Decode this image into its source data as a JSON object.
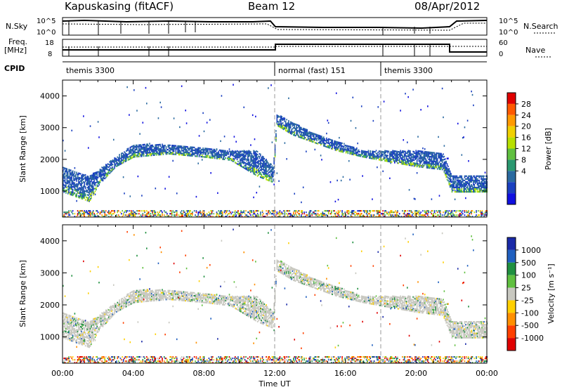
{
  "header": {
    "station": "Kapuskasing (fitACF)",
    "beam": "Beam 12",
    "date": "08/Apr/2012"
  },
  "strip_labels": {
    "nsky": "N.Sky",
    "nsky_hi": "10^5",
    "nsky_lo": "10^0",
    "nsearch": "N.Search",
    "nsearch_hi": "10^5",
    "nsearch_lo": "10^0",
    "freq_line1": "Freq.",
    "freq_line2": "[MHz]",
    "freq_hi": "18",
    "freq_lo": "8",
    "nave": "Nave",
    "nave_hi": "60",
    "nave_lo": "0",
    "cpid": "CPID"
  },
  "cpid_segments": [
    {
      "label": "themis 3300",
      "start_hour": 0
    },
    {
      "label": "normal (fast) 151",
      "start_hour": 12
    },
    {
      "label": "themis 3300",
      "start_hour": 18
    }
  ],
  "power_colorbar": {
    "title": "Power [dB]",
    "ticks": [
      "28",
      "24",
      "20",
      "16",
      "12",
      "8",
      "4"
    ],
    "colors": [
      "#e00000",
      "#ff5a00",
      "#ff9a00",
      "#f0d000",
      "#b8e000",
      "#60c040",
      "#2a9870",
      "#2a6aa0",
      "#1a40c0",
      "#1010e0"
    ]
  },
  "velocity_colorbar": {
    "title": "Velocity [m s⁻¹]",
    "ticks": [
      "1000",
      "500",
      "100",
      "25",
      "-25",
      "-100",
      "-500",
      "-1000"
    ],
    "colors": [
      "#1a2aa8",
      "#2060c0",
      "#209040",
      "#60c040",
      "#c8c8c0",
      "#ffd000",
      "#ff9000",
      "#ff4000",
      "#e00000"
    ]
  },
  "chart_data": {
    "type": "heatmap",
    "title": "Kapuskasing (fitACF) Beam 12",
    "xlabel": "Time UT",
    "ylabel": "Slant Range [km]",
    "xlim": [
      0,
      24
    ],
    "ylim": [
      180,
      4500
    ],
    "x_ticks": [
      "00:00",
      "04:00",
      "08:00",
      "12:00",
      "16:00",
      "20:00",
      "00:00"
    ],
    "y_ticks": [
      "1000",
      "2000",
      "3000",
      "4000"
    ],
    "main_echo_band_km": [
      {
        "hour": 0.0,
        "low": 1000,
        "high": 1800
      },
      {
        "hour": 1.5,
        "low": 700,
        "high": 1500
      },
      {
        "hour": 2.0,
        "low": 1200,
        "high": 1700
      },
      {
        "hour": 3.0,
        "low": 1800,
        "high": 2100
      },
      {
        "hour": 4.0,
        "low": 2100,
        "high": 2500
      },
      {
        "hour": 6.0,
        "low": 2200,
        "high": 2500
      },
      {
        "hour": 8.0,
        "low": 2100,
        "high": 2400
      },
      {
        "hour": 9.5,
        "low": 2000,
        "high": 2300
      },
      {
        "hour": 11.0,
        "low": 1500,
        "high": 2300
      },
      {
        "hour": 11.9,
        "low": 1300,
        "high": 1800
      },
      {
        "hour": 12.1,
        "low": 3100,
        "high": 3450
      },
      {
        "hour": 13.0,
        "low": 2800,
        "high": 3200
      },
      {
        "hour": 14.0,
        "low": 2600,
        "high": 2900
      },
      {
        "hour": 15.5,
        "low": 2300,
        "high": 2600
      },
      {
        "hour": 17.0,
        "low": 2100,
        "high": 2300
      },
      {
        "hour": 18.0,
        "low": 2000,
        "high": 2300
      },
      {
        "hour": 20.0,
        "low": 1800,
        "high": 2300
      },
      {
        "hour": 21.5,
        "low": 1700,
        "high": 2200
      },
      {
        "hour": 22.0,
        "low": 1000,
        "high": 1500
      },
      {
        "hour": 24.0,
        "low": 1000,
        "high": 1500
      }
    ]
  }
}
